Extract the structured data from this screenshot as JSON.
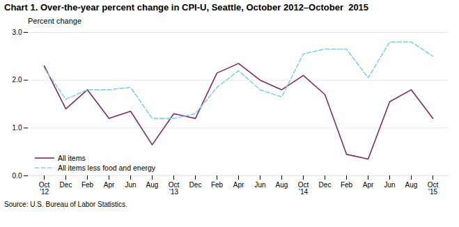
{
  "chart_data": {
    "type": "line",
    "title": "Chart 1. Over-the-year percent change in CPI-U, Seattle, October 2012–October  2015",
    "ylabel": "Percent change",
    "source": "Source: U.S. Bureau of Labor Statistics.",
    "categories": [
      "Oct\n'12",
      "Dec",
      "Feb",
      "Apr",
      "Jun",
      "Aug",
      "Oct\n'13",
      "Dec",
      "Feb",
      "Apr",
      "Jun",
      "Aug",
      "Oct\n'14",
      "Dec",
      "Feb",
      "Apr",
      "Jun",
      "Aug",
      "Oct\n'15"
    ],
    "series": [
      {
        "name": "All items",
        "color": "#7B2D5E",
        "line_style": "solid",
        "values": [
          2.3,
          1.4,
          1.8,
          1.2,
          1.35,
          0.65,
          1.3,
          1.2,
          2.15,
          2.35,
          2.0,
          1.8,
          2.1,
          1.7,
          0.45,
          0.35,
          1.55,
          1.8,
          1.2
        ]
      },
      {
        "name": "All items less food and energy",
        "color": "#87CEEB",
        "line_style": "dashed",
        "values": [
          2.25,
          1.6,
          1.8,
          1.8,
          1.85,
          1.2,
          1.2,
          1.3,
          1.85,
          2.2,
          1.8,
          1.65,
          2.55,
          2.65,
          2.65,
          2.05,
          2.8,
          2.8,
          2.5
        ]
      }
    ],
    "ylim": [
      0.0,
      3.0
    ],
    "yticks": [
      {
        "value": 0.0,
        "label": "0.0"
      },
      {
        "value": 1.0,
        "label": "1.0"
      },
      {
        "value": 2.0,
        "label": "2.0"
      },
      {
        "value": 3.0,
        "label": "3.0"
      }
    ],
    "grid": true,
    "legend": "lower left"
  }
}
